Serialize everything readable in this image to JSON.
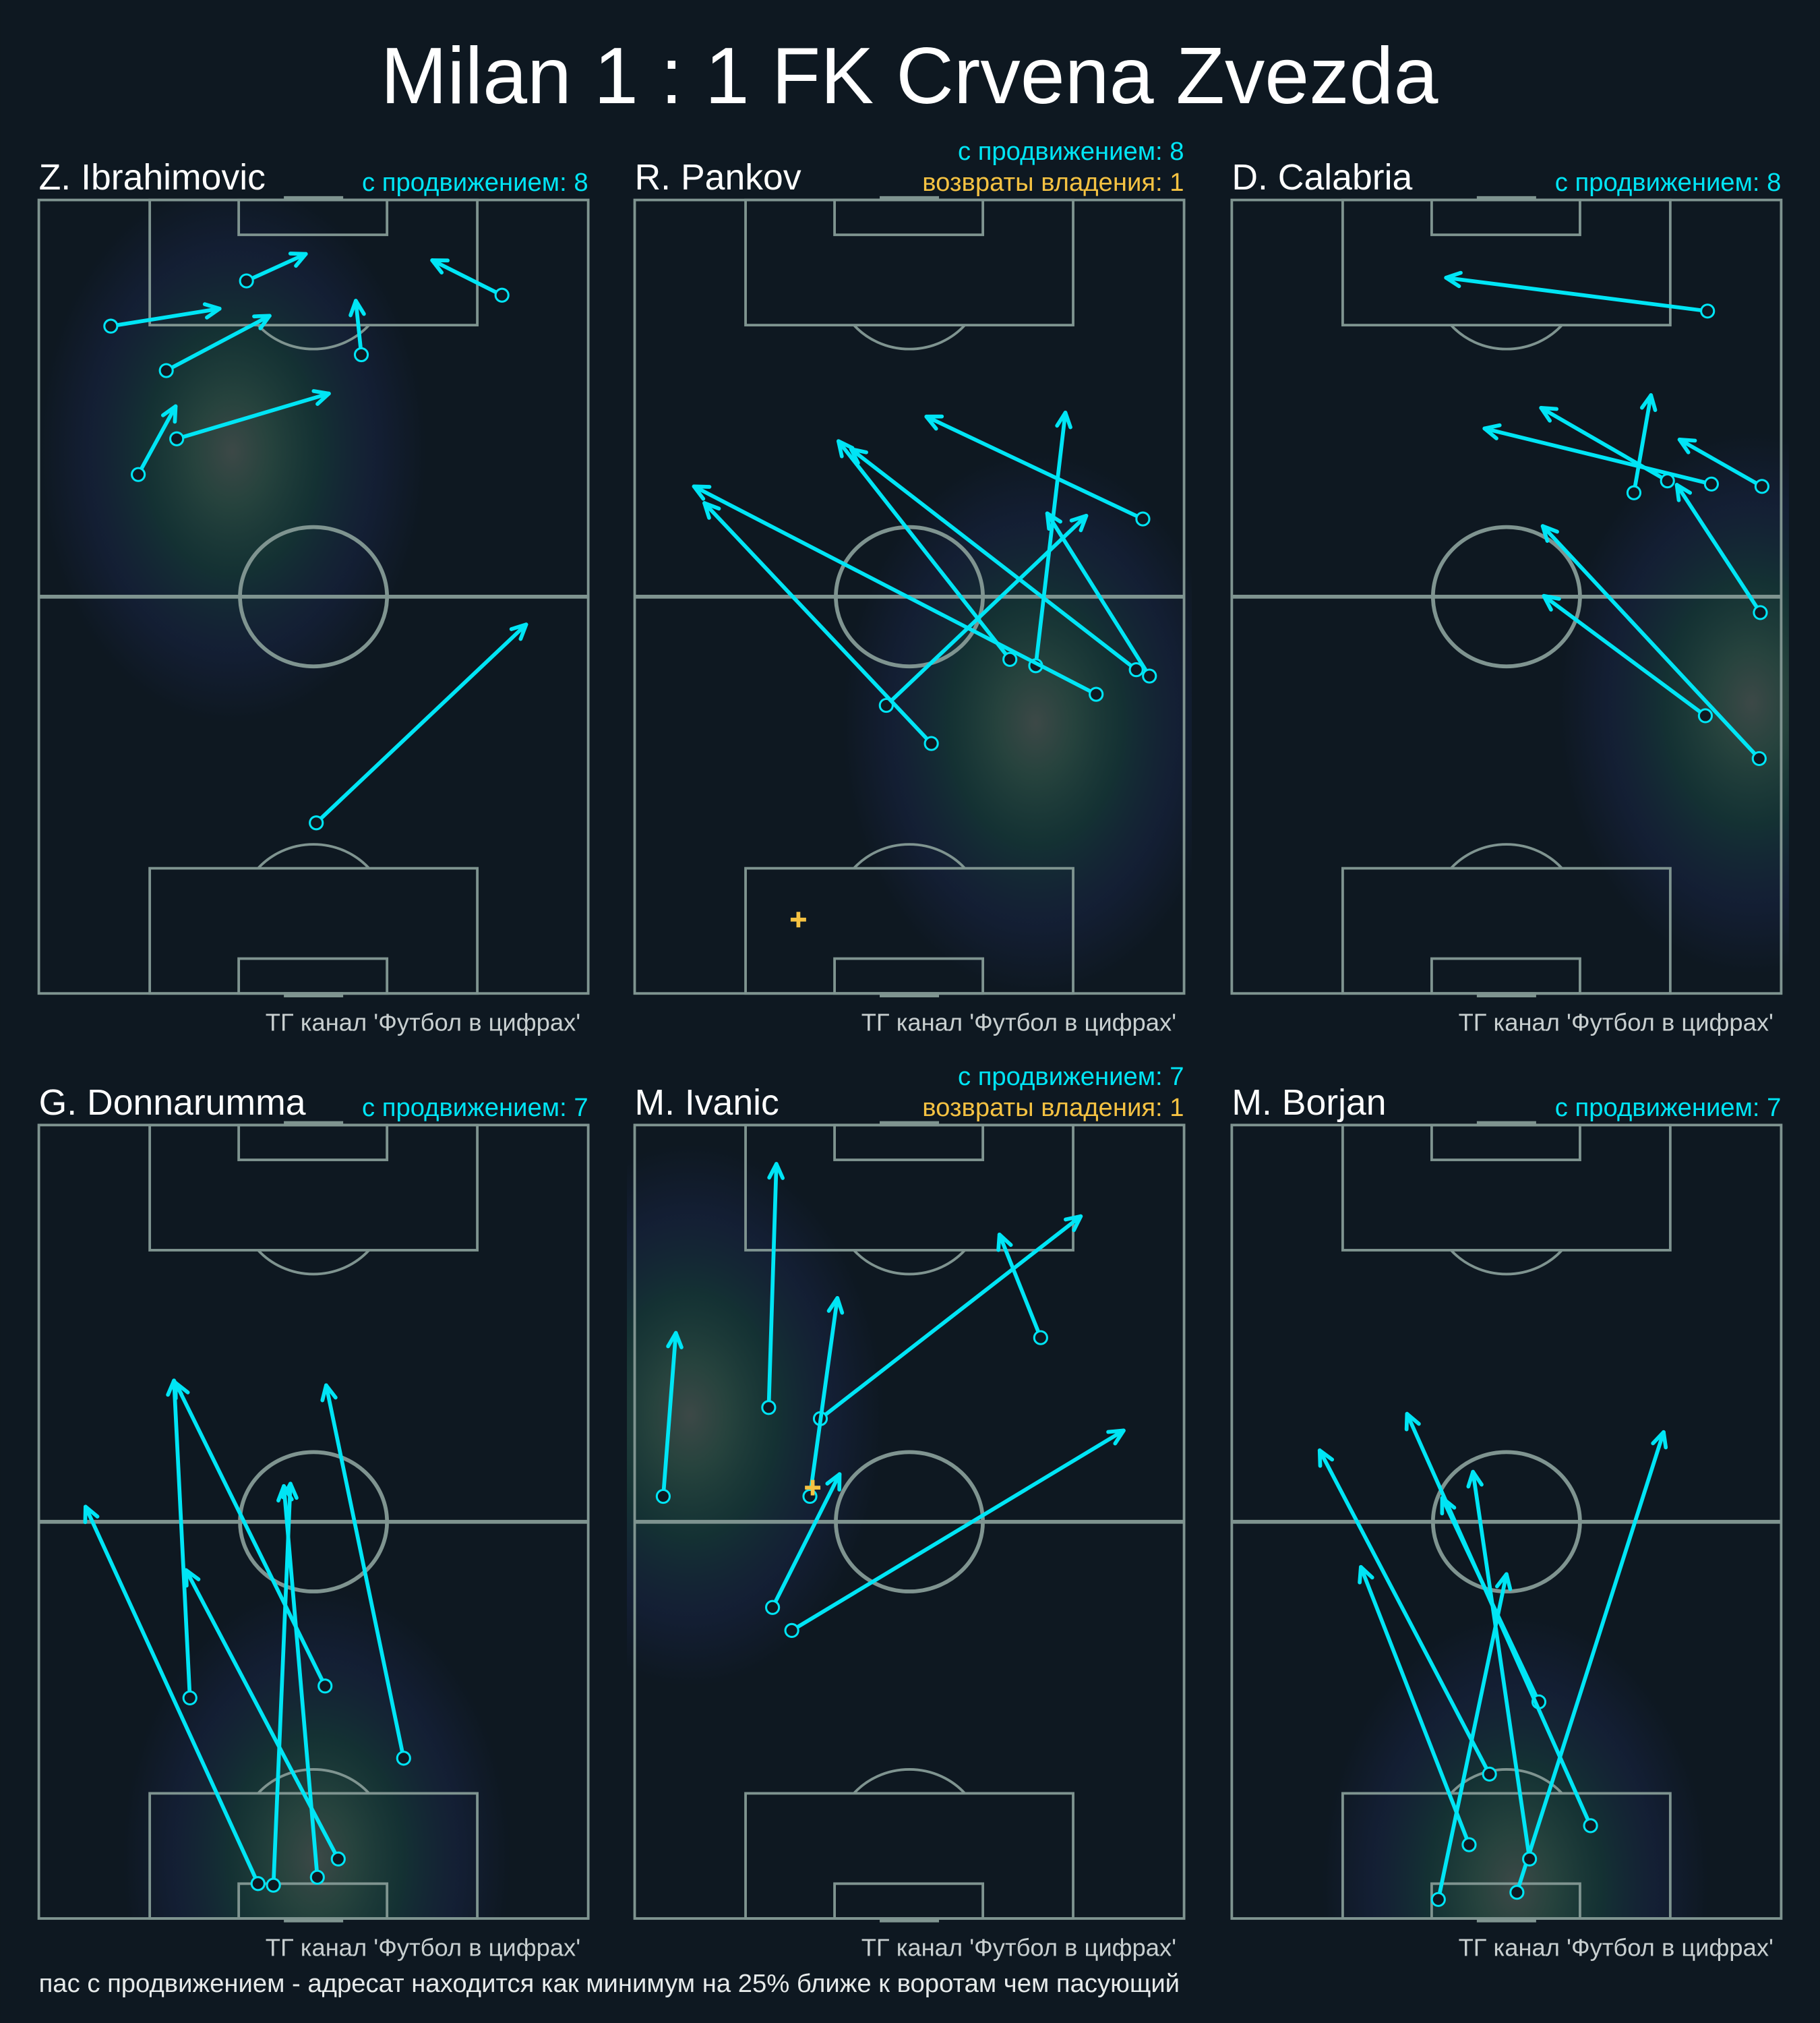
{
  "title": "Milan 1 : 1 FK Crvena Zvezda",
  "footer_note": "пас с продвижением - адресат находится как минимум на 25% ближе к воротам чем пасующий",
  "colors": {
    "background": "#0e1821",
    "pitch_lines": "#7f9490",
    "progressive_pass": "#00e5f5",
    "recovery": "#f5c242",
    "text": "#ffffff",
    "watermark": "#c8cfd0"
  },
  "chart_data": [
    {
      "type": "pass-map",
      "player": "Z. Ibrahimovic",
      "progressive_label": "с продвижением: 8",
      "recoveries_label": "",
      "watermark": "ТГ канал 'Футбол в цифрах'",
      "heatmap_peak": [
        35.2,
        68.3
      ],
      "passes": [
        {
          "start": [
            13.1,
            84.1
          ],
          "end": [
            32.9,
            86.3
          ]
        },
        {
          "start": [
            37.8,
            89.8
          ],
          "end": [
            48.6,
            93.2
          ]
        },
        {
          "start": [
            84.3,
            88.0
          ],
          "end": [
            71.6,
            92.4
          ]
        },
        {
          "start": [
            23.2,
            78.5
          ],
          "end": [
            42.0,
            85.4
          ]
        },
        {
          "start": [
            58.7,
            80.5
          ],
          "end": [
            57.7,
            87.3
          ]
        },
        {
          "start": [
            25.1,
            69.9
          ],
          "end": [
            52.8,
            75.6
          ]
        },
        {
          "start": [
            18.1,
            65.4
          ],
          "end": [
            24.9,
            74.0
          ]
        },
        {
          "start": [
            50.5,
            21.5
          ],
          "end": [
            88.7,
            46.5
          ]
        }
      ],
      "recoveries": []
    },
    {
      "type": "pass-map",
      "player": "R. Pankov",
      "progressive_label": "с продвижением: 8",
      "recoveries_label": "возвраты владения: 1",
      "watermark": "ТГ канал 'Футбол в цифрах'",
      "heatmap_peak": [
        73.0,
        34.1
      ],
      "passes": [
        {
          "start": [
            92.5,
            59.8
          ],
          "end": [
            53.1,
            72.7
          ]
        },
        {
          "start": [
            73.0,
            41.3
          ],
          "end": [
            78.4,
            73.2
          ]
        },
        {
          "start": [
            68.3,
            42.1
          ],
          "end": [
            37.1,
            69.6
          ]
        },
        {
          "start": [
            91.3,
            40.8
          ],
          "end": [
            39.4,
            68.6
          ]
        },
        {
          "start": [
            93.7,
            40.0
          ],
          "end": [
            75.1,
            60.5
          ]
        },
        {
          "start": [
            84.0,
            37.7
          ],
          "end": [
            10.8,
            63.9
          ]
        },
        {
          "start": [
            45.8,
            36.3
          ],
          "end": [
            82.2,
            60.2
          ]
        },
        {
          "start": [
            54.0,
            31.5
          ],
          "end": [
            12.7,
            61.8
          ]
        }
      ],
      "recoveries": [
        [
          29.8,
          9.3
        ]
      ]
    },
    {
      "type": "pass-map",
      "player": "D. Calabria",
      "progressive_label": "с продвижением: 8",
      "recoveries_label": "",
      "watermark": "ТГ канал 'Футбол в цифрах'",
      "heatmap_peak": [
        94.6,
        36.6
      ],
      "passes": [
        {
          "start": [
            86.6,
            86.0
          ],
          "end": [
            39.0,
            90.2
          ]
        },
        {
          "start": [
            87.3,
            64.2
          ],
          "end": [
            46.0,
            71.2
          ]
        },
        {
          "start": [
            79.3,
            64.6
          ],
          "end": [
            56.3,
            73.8
          ]
        },
        {
          "start": [
            73.2,
            63.1
          ],
          "end": [
            76.3,
            75.4
          ]
        },
        {
          "start": [
            96.5,
            63.9
          ],
          "end": [
            81.5,
            69.8
          ]
        },
        {
          "start": [
            96.2,
            48.0
          ],
          "end": [
            81.0,
            64.1
          ]
        },
        {
          "start": [
            86.2,
            35.0
          ],
          "end": [
            56.8,
            50.1
          ]
        },
        {
          "start": [
            96.0,
            29.6
          ],
          "end": [
            56.6,
            58.9
          ]
        }
      ],
      "recoveries": []
    },
    {
      "type": "pass-map",
      "player": "G. Donnarumma",
      "progressive_label": "с продвижением: 7",
      "recoveries_label": "",
      "watermark": "ТГ канал 'Футбол в цифрах'",
      "heatmap_peak": [
        50.5,
        7.6
      ],
      "passes": [
        {
          "start": [
            39.9,
            4.4
          ],
          "end": [
            8.5,
            51.9
          ]
        },
        {
          "start": [
            42.7,
            4.2
          ],
          "end": [
            45.8,
            54.8
          ]
        },
        {
          "start": [
            50.7,
            5.2
          ],
          "end": [
            44.6,
            54.5
          ]
        },
        {
          "start": [
            54.5,
            7.5
          ],
          "end": [
            26.8,
            43.9
          ]
        },
        {
          "start": [
            27.5,
            27.8
          ],
          "end": [
            24.6,
            67.8
          ]
        },
        {
          "start": [
            52.1,
            29.3
          ],
          "end": [
            24.9,
            67.5
          ]
        },
        {
          "start": [
            66.4,
            20.2
          ],
          "end": [
            52.3,
            67.2
          ]
        }
      ],
      "recoveries": []
    },
    {
      "type": "pass-map",
      "player": "M. Ivanic",
      "progressive_label": "с продвижением: 7",
      "recoveries_label": "возвраты владения: 1",
      "watermark": "ТГ канал 'Футбол в цифрах'",
      "heatmap_peak": [
        10.1,
        63.4
      ],
      "passes": [
        {
          "start": [
            5.2,
            53.2
          ],
          "end": [
            7.5,
            73.8
          ]
        },
        {
          "start": [
            24.4,
            64.4
          ],
          "end": [
            25.8,
            95.1
          ]
        },
        {
          "start": [
            33.8,
            63.0
          ],
          "end": [
            81.2,
            88.5
          ]
        },
        {
          "start": [
            31.9,
            53.2
          ],
          "end": [
            36.9,
            78.2
          ]
        },
        {
          "start": [
            25.1,
            39.2
          ],
          "end": [
            37.3,
            56.0
          ]
        },
        {
          "start": [
            28.6,
            36.3
          ],
          "end": [
            89.0,
            61.5
          ]
        },
        {
          "start": [
            73.9,
            73.2
          ],
          "end": [
            66.4,
            86.2
          ]
        }
      ],
      "recoveries": [
        [
          32.4,
          54.3
        ]
      ]
    },
    {
      "type": "pass-map",
      "player": "M. Borjan",
      "progressive_label": "с продвижением: 7",
      "recoveries_label": "",
      "watermark": "ТГ канал 'Футбол в цифрах'",
      "heatmap_peak": [
        51.6,
        4.1
      ],
      "passes": [
        {
          "start": [
            37.6,
            2.4
          ],
          "end": [
            50.0,
            43.4
          ]
        },
        {
          "start": [
            51.9,
            3.3
          ],
          "end": [
            78.6,
            61.3
          ]
        },
        {
          "start": [
            54.2,
            7.5
          ],
          "end": [
            43.9,
            56.3
          ]
        },
        {
          "start": [
            43.2,
            9.3
          ],
          "end": [
            23.5,
            44.3
          ]
        },
        {
          "start": [
            46.9,
            18.2
          ],
          "end": [
            16.0,
            59.0
          ]
        },
        {
          "start": [
            55.9,
            27.3
          ],
          "end": [
            38.3,
            53.0
          ]
        },
        {
          "start": [
            65.3,
            11.7
          ],
          "end": [
            31.9,
            63.6
          ]
        }
      ],
      "recoveries": []
    }
  ]
}
